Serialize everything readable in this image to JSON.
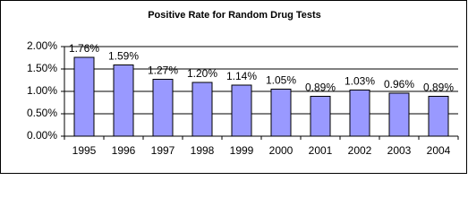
{
  "chart_data": {
    "type": "bar",
    "title": "Positive Rate for Random Drug Tests",
    "categories": [
      "1995",
      "1996",
      "1997",
      "1998",
      "1999",
      "2000",
      "2001",
      "2002",
      "2003",
      "2004"
    ],
    "values": [
      1.76,
      1.59,
      1.27,
      1.2,
      1.14,
      1.05,
      0.89,
      1.03,
      0.96,
      0.89
    ],
    "value_labels": [
      "1.76%",
      "1.59%",
      "1.27%",
      "1.20%",
      "1.14%",
      "1.05%",
      "0.89%",
      "1.03%",
      "0.96%",
      "0.89%"
    ],
    "color": "#9999ff",
    "ylim": [
      0,
      2
    ],
    "yticks": [
      {
        "value": 0,
        "label": "0.00%"
      },
      {
        "value": 0.5,
        "label": "0.50%"
      },
      {
        "value": 1,
        "label": "1.00%"
      },
      {
        "value": 1.5,
        "label": "1.50%"
      },
      {
        "value": 2,
        "label": "2.00%"
      }
    ],
    "grid": true
  }
}
